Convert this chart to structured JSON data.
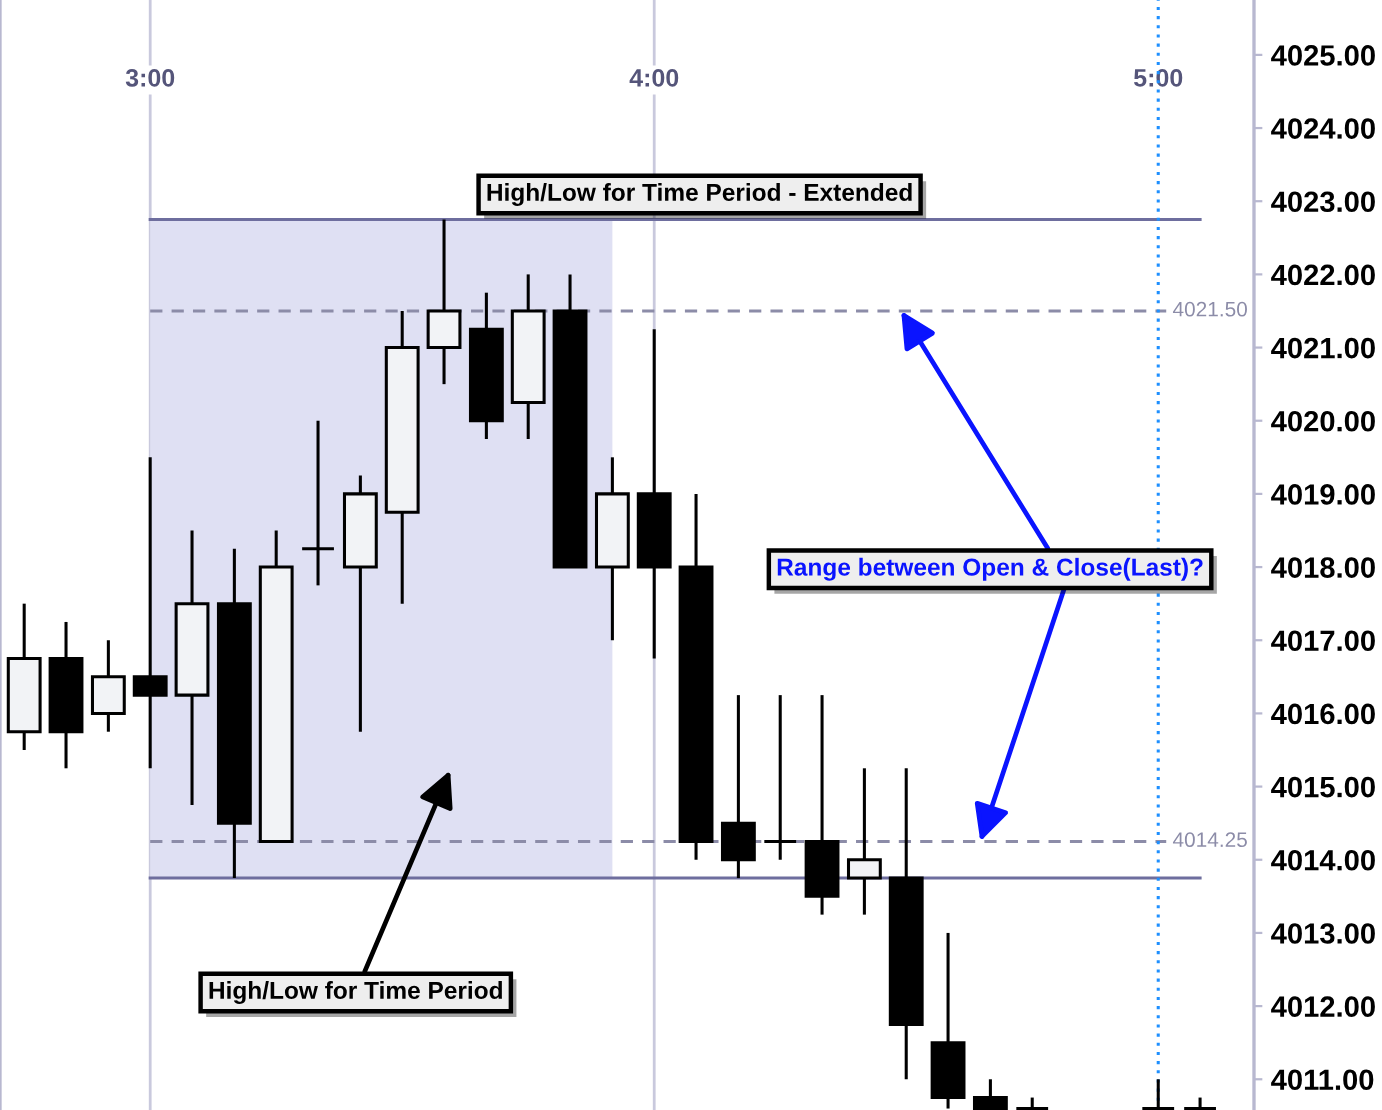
{
  "chart_data": {
    "type": "candlestick",
    "x": [
      2.75,
      2.833,
      2.917,
      3.0,
      3.083,
      3.167,
      3.25,
      3.333,
      3.417,
      3.5,
      3.583,
      3.667,
      3.75,
      3.833,
      3.917,
      4.0,
      4.083,
      4.167,
      4.25,
      4.333,
      4.417,
      4.5,
      4.583,
      4.667,
      4.75,
      5.0,
      5.083
    ],
    "ohlc": [
      [
        4015.75,
        4017.5,
        4015.5,
        4016.75
      ],
      [
        4016.75,
        4017.25,
        4015.25,
        4015.75
      ],
      [
        4016.0,
        4017.0,
        4015.75,
        4016.5
      ],
      [
        4016.5,
        4019.5,
        4015.25,
        4016.25
      ],
      [
        4016.25,
        4018.5,
        4014.75,
        4017.5
      ],
      [
        4017.5,
        4018.25,
        4013.75,
        4014.5
      ],
      [
        4014.25,
        4018.5,
        4014.25,
        4018.0
      ],
      [
        4018.25,
        4020.0,
        4017.75,
        4018.25
      ],
      [
        4018.0,
        4019.25,
        4015.75,
        4019.0
      ],
      [
        4018.75,
        4021.5,
        4017.5,
        4021.0
      ],
      [
        4021.0,
        4022.75,
        4020.5,
        4021.5
      ],
      [
        4021.25,
        4021.75,
        4019.75,
        4020.0
      ],
      [
        4020.25,
        4022.0,
        4019.75,
        4021.5
      ],
      [
        4021.5,
        4022.0,
        4018.0,
        4018.0
      ],
      [
        4018.0,
        4019.5,
        4017.0,
        4019.0
      ],
      [
        4019.0,
        4021.25,
        4016.75,
        4018.0
      ],
      [
        4018.0,
        4019.0,
        4014.0,
        4014.25
      ],
      [
        4014.5,
        4016.25,
        4013.75,
        4014.0
      ],
      [
        4014.25,
        4016.25,
        4014.0,
        4014.25
      ],
      [
        4014.25,
        4016.25,
        4013.25,
        4013.5
      ],
      [
        4013.75,
        4015.25,
        4013.25,
        4014.0
      ],
      [
        4013.75,
        4015.25,
        4011.0,
        4011.75
      ],
      [
        4011.5,
        4013.0,
        4010.6,
        4010.75
      ],
      [
        4010.75,
        4011.0,
        4010.6,
        4010.6
      ],
      [
        4010.6,
        4010.75,
        4010.6,
        4010.6
      ],
      [
        4010.6,
        4011.0,
        4010.6,
        4010.6
      ],
      [
        4010.6,
        4010.75,
        4010.6,
        4010.6
      ]
    ],
    "xlim": [
      2.702,
      5.19
    ],
    "xticks": [
      {
        "value": 3,
        "label": "3:00"
      },
      {
        "value": 4,
        "label": "4:00"
      },
      {
        "value": 5,
        "label": "5:00"
      }
    ],
    "ylim": [
      4010.58,
      4025.75
    ],
    "yticks": [
      {
        "value": 4011,
        "label": "4011.00"
      },
      {
        "value": 4012,
        "label": "4012.00"
      },
      {
        "value": 4013,
        "label": "4013.00"
      },
      {
        "value": 4014,
        "label": "4014.00"
      },
      {
        "value": 4015,
        "label": "4015.00"
      },
      {
        "value": 4016,
        "label": "4016.00"
      },
      {
        "value": 4017,
        "label": "4017.00"
      },
      {
        "value": 4018,
        "label": "4018.00"
      },
      {
        "value": 4019,
        "label": "4019.00"
      },
      {
        "value": 4020,
        "label": "4020.00"
      },
      {
        "value": 4021,
        "label": "4021.00"
      },
      {
        "value": 4022,
        "label": "4022.00"
      },
      {
        "value": 4023,
        "label": "4023.00"
      },
      {
        "value": 4024,
        "label": "4024.00"
      },
      {
        "value": 4025,
        "label": "4025.00"
      }
    ],
    "grid": "x",
    "bands": [
      {
        "axis": "x",
        "from": 3.0,
        "to": 3.917,
        "color": "#dfe0f3"
      }
    ],
    "ref_lines": [
      {
        "axis": "y",
        "value": 4022.75,
        "color": "#6e6e9e",
        "line_style": "solid"
      },
      {
        "axis": "y",
        "value": 4013.75,
        "color": "#6e6e9e",
        "line_style": "solid"
      },
      {
        "axis": "y",
        "value": 4021.5,
        "label": "4021.50",
        "color": "#8c8ca8",
        "line_style": "dashed"
      },
      {
        "axis": "y",
        "value": 4014.25,
        "label": "4014.25",
        "color": "#8c8ca8",
        "line_style": "dashed"
      },
      {
        "axis": "x",
        "value": 5,
        "color": "#1e8fff",
        "line_style": "dotted"
      }
    ],
    "annotations": [
      {
        "text": "High/Low for Time Period - Extended",
        "x": 4.09,
        "y": 4022.75
      },
      "High/Low for Time Period",
      {
        "text": "Range between Open & Close(Last)?",
        "x": 4.49,
        "y": 4021.5
      }
    ]
  }
}
